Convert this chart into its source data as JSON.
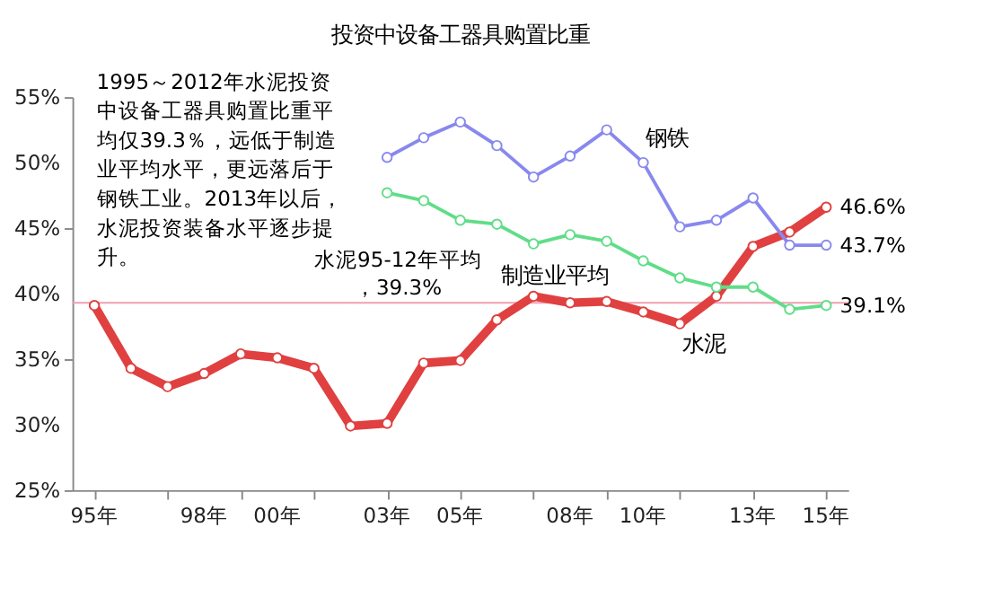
{
  "chart_data": {
    "type": "line",
    "title": "投资中设备工器具购置比重",
    "categories": [
      "95年",
      null,
      null,
      "98年",
      null,
      "00年",
      null,
      null,
      "03年",
      null,
      "05年",
      null,
      null,
      "08年",
      null,
      "10年",
      null,
      null,
      "13年",
      null,
      "15年"
    ],
    "series": [
      {
        "name": "水泥",
        "color": "#e04040",
        "values": [
          39.1,
          34.3,
          32.9,
          33.9,
          35.4,
          35.1,
          34.3,
          29.9,
          30.1,
          34.7,
          34.9,
          38.0,
          39.8,
          39.3,
          39.4,
          38.6,
          37.7,
          39.8,
          43.6,
          44.7,
          46.6
        ],
        "value_labels": [
          null,
          null,
          null,
          null,
          null,
          null,
          null,
          null,
          null,
          null,
          null,
          null,
          null,
          null,
          null,
          null,
          null,
          null,
          null,
          null,
          "46.6%"
        ]
      },
      {
        "name": "钢铁",
        "color": "#8888ee",
        "values": [
          null,
          null,
          null,
          null,
          null,
          null,
          null,
          null,
          50.4,
          51.9,
          53.1,
          51.3,
          48.9,
          50.5,
          52.5,
          50.0,
          45.1,
          45.6,
          47.3,
          43.7,
          43.7
        ],
        "value_labels": [
          null,
          null,
          null,
          null,
          null,
          null,
          null,
          null,
          null,
          null,
          null,
          null,
          null,
          null,
          null,
          null,
          null,
          null,
          null,
          null,
          "43.7%"
        ]
      },
      {
        "name": "制造业平均",
        "color": "#60dd88",
        "values": [
          null,
          null,
          null,
          null,
          null,
          null,
          null,
          null,
          47.7,
          47.1,
          45.6,
          45.3,
          43.8,
          44.5,
          44.0,
          42.5,
          41.2,
          40.5,
          40.5,
          38.8,
          39.1
        ],
        "value_labels": [
          null,
          null,
          null,
          null,
          null,
          null,
          null,
          null,
          null,
          null,
          null,
          null,
          null,
          null,
          null,
          null,
          null,
          null,
          null,
          null,
          "39.1%"
        ]
      }
    ],
    "ylim": [
      25,
      55
    ],
    "yticks": [
      {
        "value": 25,
        "label": "25%"
      },
      {
        "value": 30,
        "label": "30%"
      },
      {
        "value": 35,
        "label": "35%"
      },
      {
        "value": 40,
        "label": "40%"
      },
      {
        "value": 45,
        "label": "45%"
      },
      {
        "value": 50,
        "label": "50%"
      },
      {
        "value": 55,
        "label": "55%"
      }
    ],
    "ref_lines": [
      {
        "axis": "y",
        "value": 39.3,
        "label": "水泥95-12年平均，39.3%",
        "color": "#f0a0b0"
      }
    ],
    "annotations": [
      "1995～2012年水泥投资中设备工器具购置比重平均仅39.3％，远低于制造业平均水平，更远落后于钢铁工业。2013年以后，水泥投资装备水平逐步提升。"
    ],
    "marker": "circle",
    "line_style": "solid",
    "grid": false
  }
}
